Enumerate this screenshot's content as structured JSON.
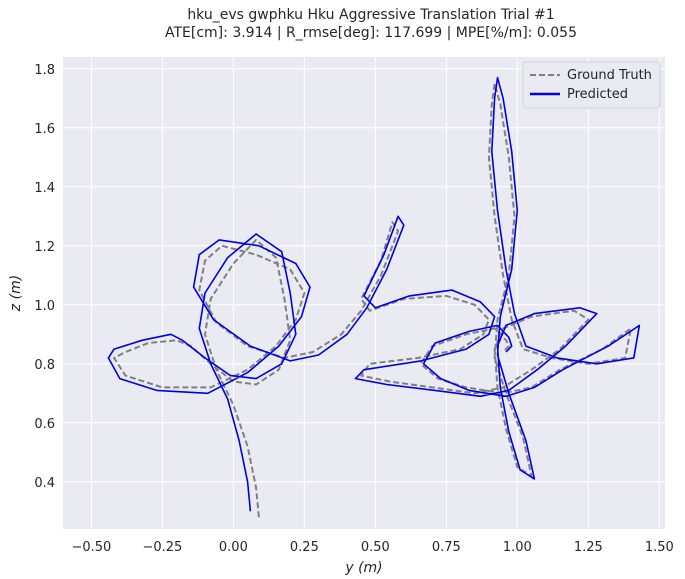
{
  "chart_data": {
    "type": "line",
    "title": "hku_evs gwphku Hku Aggressive Translation Trial #1",
    "subtitle": "ATE[cm]: 3.914 | R_rmse[deg]: 117.699 | MPE[%/m]: 0.055",
    "xlabel": "y (m)",
    "ylabel": "z (m)",
    "xlim": [
      -0.6,
      1.52
    ],
    "ylim": [
      0.24,
      1.84
    ],
    "xticks": [
      "-0.50",
      "-0.25",
      "0.00",
      "0.25",
      "0.50",
      "0.75",
      "1.00",
      "1.25",
      "1.50"
    ],
    "yticks": [
      "0.4",
      "0.6",
      "0.8",
      "1.0",
      "1.2",
      "1.4",
      "1.6",
      "1.8"
    ],
    "grid": true,
    "legend_position": "top-right",
    "series": [
      {
        "name": "Ground Truth",
        "style": "dashed",
        "color": "#808080",
        "x": [
          0.09,
          0.08,
          0.05,
          0.0,
          -0.06,
          -0.1,
          -0.08,
          0.0,
          0.08,
          0.15,
          0.18,
          0.2,
          0.16,
          0.08,
          0.0,
          -0.08,
          -0.15,
          -0.2,
          -0.3,
          -0.38,
          -0.42,
          -0.38,
          -0.25,
          -0.08,
          0.05,
          0.15,
          0.22,
          0.25,
          0.2,
          0.08,
          -0.04,
          -0.1,
          -0.12,
          -0.06,
          0.05,
          0.18,
          0.28,
          0.38,
          0.45,
          0.52,
          0.58,
          0.56,
          0.52,
          0.45,
          0.48,
          0.6,
          0.75,
          0.85,
          0.9,
          0.88,
          0.8,
          0.65,
          0.48,
          0.45,
          0.55,
          0.7,
          0.85,
          0.95,
          1.05,
          1.15,
          1.25,
          1.2,
          1.05,
          0.95,
          0.92,
          0.93,
          0.96,
          1.0,
          1.05,
          1.02,
          0.96,
          0.92,
          0.93,
          0.97,
          0.99,
          0.97,
          0.94,
          0.92,
          0.91,
          0.9,
          0.92,
          0.95,
          0.98,
          1.02,
          1.12,
          1.25,
          1.38,
          1.4,
          1.3,
          1.15,
          1.05,
          0.95,
          0.82,
          0.72,
          0.66,
          0.7,
          0.82,
          0.92,
          0.96,
          0.97,
          0.95
        ],
        "y": [
          0.28,
          0.38,
          0.52,
          0.66,
          0.78,
          0.9,
          1.02,
          1.14,
          1.22,
          1.16,
          1.02,
          0.88,
          0.78,
          0.73,
          0.74,
          0.8,
          0.86,
          0.88,
          0.87,
          0.84,
          0.82,
          0.76,
          0.72,
          0.72,
          0.78,
          0.86,
          0.95,
          1.04,
          1.12,
          1.17,
          1.2,
          1.15,
          1.05,
          0.94,
          0.86,
          0.82,
          0.84,
          0.9,
          0.98,
          1.1,
          1.25,
          1.28,
          1.15,
          1.02,
          0.98,
          1.02,
          1.03,
          1.0,
          0.95,
          0.9,
          0.85,
          0.82,
          0.8,
          0.76,
          0.74,
          0.72,
          0.7,
          0.72,
          0.78,
          0.85,
          0.95,
          0.98,
          0.96,
          0.92,
          0.85,
          0.72,
          0.58,
          0.45,
          0.42,
          0.55,
          0.7,
          0.82,
          0.95,
          1.1,
          1.3,
          1.5,
          1.68,
          1.75,
          1.68,
          1.5,
          1.3,
          1.1,
          0.95,
          0.85,
          0.82,
          0.8,
          0.82,
          0.92,
          0.85,
          0.78,
          0.72,
          0.7,
          0.72,
          0.75,
          0.8,
          0.86,
          0.9,
          0.92,
          0.88,
          0.86,
          0.84
        ]
      },
      {
        "name": "Predicted",
        "style": "solid",
        "color": "#0000e6",
        "x": [
          0.06,
          0.05,
          0.02,
          -0.02,
          -0.08,
          -0.12,
          -0.1,
          -0.02,
          0.08,
          0.17,
          0.2,
          0.22,
          0.17,
          0.08,
          -0.01,
          -0.1,
          -0.18,
          -0.22,
          -0.32,
          -0.42,
          -0.44,
          -0.4,
          -0.27,
          -0.09,
          0.05,
          0.16,
          0.24,
          0.27,
          0.22,
          0.09,
          -0.05,
          -0.12,
          -0.14,
          -0.07,
          0.06,
          0.2,
          0.3,
          0.4,
          0.47,
          0.54,
          0.6,
          0.58,
          0.53,
          0.46,
          0.5,
          0.62,
          0.77,
          0.87,
          0.92,
          0.9,
          0.82,
          0.66,
          0.46,
          0.43,
          0.54,
          0.71,
          0.87,
          0.97,
          1.07,
          1.17,
          1.28,
          1.22,
          1.06,
          0.96,
          0.93,
          0.94,
          0.97,
          1.01,
          1.06,
          1.03,
          0.97,
          0.93,
          0.94,
          0.98,
          1.0,
          0.98,
          0.95,
          0.93,
          0.92,
          0.91,
          0.93,
          0.96,
          0.99,
          1.03,
          1.14,
          1.28,
          1.41,
          1.43,
          1.32,
          1.16,
          1.06,
          0.96,
          0.83,
          0.73,
          0.67,
          0.71,
          0.83,
          0.93,
          0.97,
          0.98,
          0.96
        ],
        "y": [
          0.3,
          0.4,
          0.54,
          0.68,
          0.8,
          0.92,
          1.04,
          1.16,
          1.24,
          1.18,
          1.04,
          0.9,
          0.8,
          0.75,
          0.76,
          0.82,
          0.88,
          0.9,
          0.88,
          0.85,
          0.82,
          0.75,
          0.71,
          0.7,
          0.77,
          0.86,
          0.96,
          1.06,
          1.14,
          1.2,
          1.22,
          1.17,
          1.06,
          0.95,
          0.86,
          0.81,
          0.83,
          0.9,
          0.99,
          1.12,
          1.27,
          1.3,
          1.17,
          1.03,
          0.99,
          1.03,
          1.05,
          1.01,
          0.96,
          0.9,
          0.85,
          0.81,
          0.78,
          0.75,
          0.73,
          0.71,
          0.69,
          0.71,
          0.78,
          0.86,
          0.97,
          0.99,
          0.97,
          0.93,
          0.86,
          0.72,
          0.57,
          0.44,
          0.41,
          0.54,
          0.7,
          0.83,
          0.96,
          1.12,
          1.32,
          1.52,
          1.7,
          1.77,
          1.7,
          1.52,
          1.32,
          1.12,
          0.97,
          0.86,
          0.82,
          0.8,
          0.82,
          0.93,
          0.86,
          0.78,
          0.72,
          0.69,
          0.71,
          0.75,
          0.8,
          0.87,
          0.91,
          0.93,
          0.89,
          0.86,
          0.84
        ]
      }
    ]
  }
}
